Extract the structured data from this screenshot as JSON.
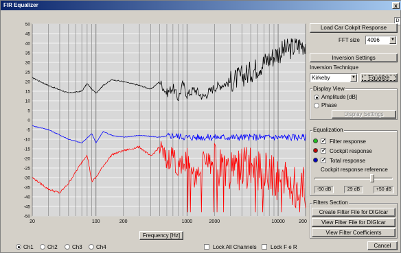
{
  "window": {
    "title": "FIR Equalizer",
    "close_glyph": "x",
    "edge_button": "D"
  },
  "chart_data": {
    "type": "line",
    "xscale": "log",
    "xlim": [
      20,
      20000
    ],
    "ylim": [
      -50,
      50
    ],
    "grid": true,
    "xlabel": "Frequency [Hz]",
    "ylabel": "",
    "y_ticks": [
      50,
      45,
      40,
      35,
      30,
      25,
      20,
      15,
      10,
      5,
      0,
      -5,
      -10,
      -15,
      -20,
      -25,
      -30,
      -35,
      -40,
      -45,
      -50
    ],
    "x_ticks": [
      20,
      100,
      200,
      1000,
      2000,
      10000,
      20000
    ],
    "series": [
      {
        "color": "#000000",
        "shape": "black-upper",
        "points": [
          [
            20,
            22
          ],
          [
            30,
            18
          ],
          [
            50,
            14
          ],
          [
            70,
            15
          ],
          [
            80,
            19
          ],
          [
            90,
            16
          ],
          [
            100,
            14
          ],
          [
            120,
            18
          ],
          [
            150,
            21
          ],
          [
            200,
            20
          ],
          [
            300,
            18
          ],
          [
            400,
            16
          ],
          [
            500,
            20
          ],
          [
            600,
            14
          ],
          [
            700,
            17
          ],
          [
            800,
            11
          ],
          [
            900,
            19
          ],
          [
            1000,
            13
          ],
          [
            1200,
            16
          ],
          [
            1500,
            12
          ],
          [
            2000,
            17
          ],
          [
            3000,
            20
          ],
          [
            5000,
            25
          ],
          [
            7000,
            30
          ],
          [
            10000,
            35
          ],
          [
            15000,
            38
          ],
          [
            20000,
            40
          ]
        ]
      },
      {
        "color": "#0000ff",
        "shape": "blue-middle",
        "points": [
          [
            20,
            -3
          ],
          [
            30,
            -5
          ],
          [
            50,
            -10
          ],
          [
            70,
            -12
          ],
          [
            90,
            -7
          ],
          [
            100,
            -12
          ],
          [
            120,
            -6
          ],
          [
            150,
            -8
          ],
          [
            200,
            -9
          ],
          [
            300,
            -8
          ],
          [
            500,
            -9
          ],
          [
            700,
            -8
          ],
          [
            1000,
            -9
          ],
          [
            2000,
            -9
          ],
          [
            5000,
            -9
          ],
          [
            10000,
            -9
          ],
          [
            20000,
            -9
          ]
        ]
      },
      {
        "color": "#ff0000",
        "shape": "red-lower",
        "points": [
          [
            20,
            -30
          ],
          [
            30,
            -36
          ],
          [
            40,
            -38
          ],
          [
            50,
            -33
          ],
          [
            70,
            -22
          ],
          [
            80,
            -18
          ],
          [
            90,
            -32
          ],
          [
            100,
            -30
          ],
          [
            120,
            -24
          ],
          [
            150,
            -18
          ],
          [
            200,
            -16
          ],
          [
            300,
            -14
          ],
          [
            400,
            -19
          ],
          [
            500,
            -14
          ],
          [
            600,
            -22
          ],
          [
            700,
            -17
          ],
          [
            800,
            -27
          ],
          [
            1000,
            -20
          ],
          [
            1200,
            -30
          ],
          [
            1500,
            -22
          ],
          [
            2000,
            -24
          ],
          [
            3000,
            -28
          ],
          [
            5000,
            -25
          ],
          [
            7000,
            -28
          ],
          [
            10000,
            -30
          ],
          [
            15000,
            -34
          ],
          [
            20000,
            -35
          ]
        ]
      }
    ]
  },
  "controls": {
    "load_cockpit": "Load Car Cokpit Response",
    "fft_label": "FFT size",
    "fft_value": "4096",
    "inversion_settings": "Inversion Settings",
    "inversion_technique_label": "Inversion Technique",
    "inversion_technique_value": "Kirkeby",
    "equalize": "Equalize",
    "display_view_title": "Display View",
    "amplitude": "Amplitude [dB]",
    "phase": "Phase",
    "display_settings": "Display Settings",
    "equalization_title": "Equalization",
    "filter_response": "Filter response",
    "cockpit_response": "Cockpit response",
    "total_response": "Total response",
    "cockpit_ref_label": "Cockpit response reference",
    "ref_min": "-50 dB",
    "ref_value": "29 dB",
    "ref_max": "+50 dB",
    "filters_title": "Filters Section",
    "create_filter": "Create Filter File for DIGIcar",
    "view_filter": "View Filter File for DIGIcar",
    "view_coeffs": "View Filter Coefficients",
    "cancel": "Cancel"
  },
  "colors": {
    "filter": "#20c020",
    "cockpit": "#c00000",
    "total": "#0000c0"
  },
  "bottom": {
    "ch1": "Ch1",
    "ch2": "Ch2",
    "ch3": "Ch3",
    "ch4": "Ch4",
    "lock_all": "Lock All Channels",
    "lock_fr": "Lock F e R"
  }
}
